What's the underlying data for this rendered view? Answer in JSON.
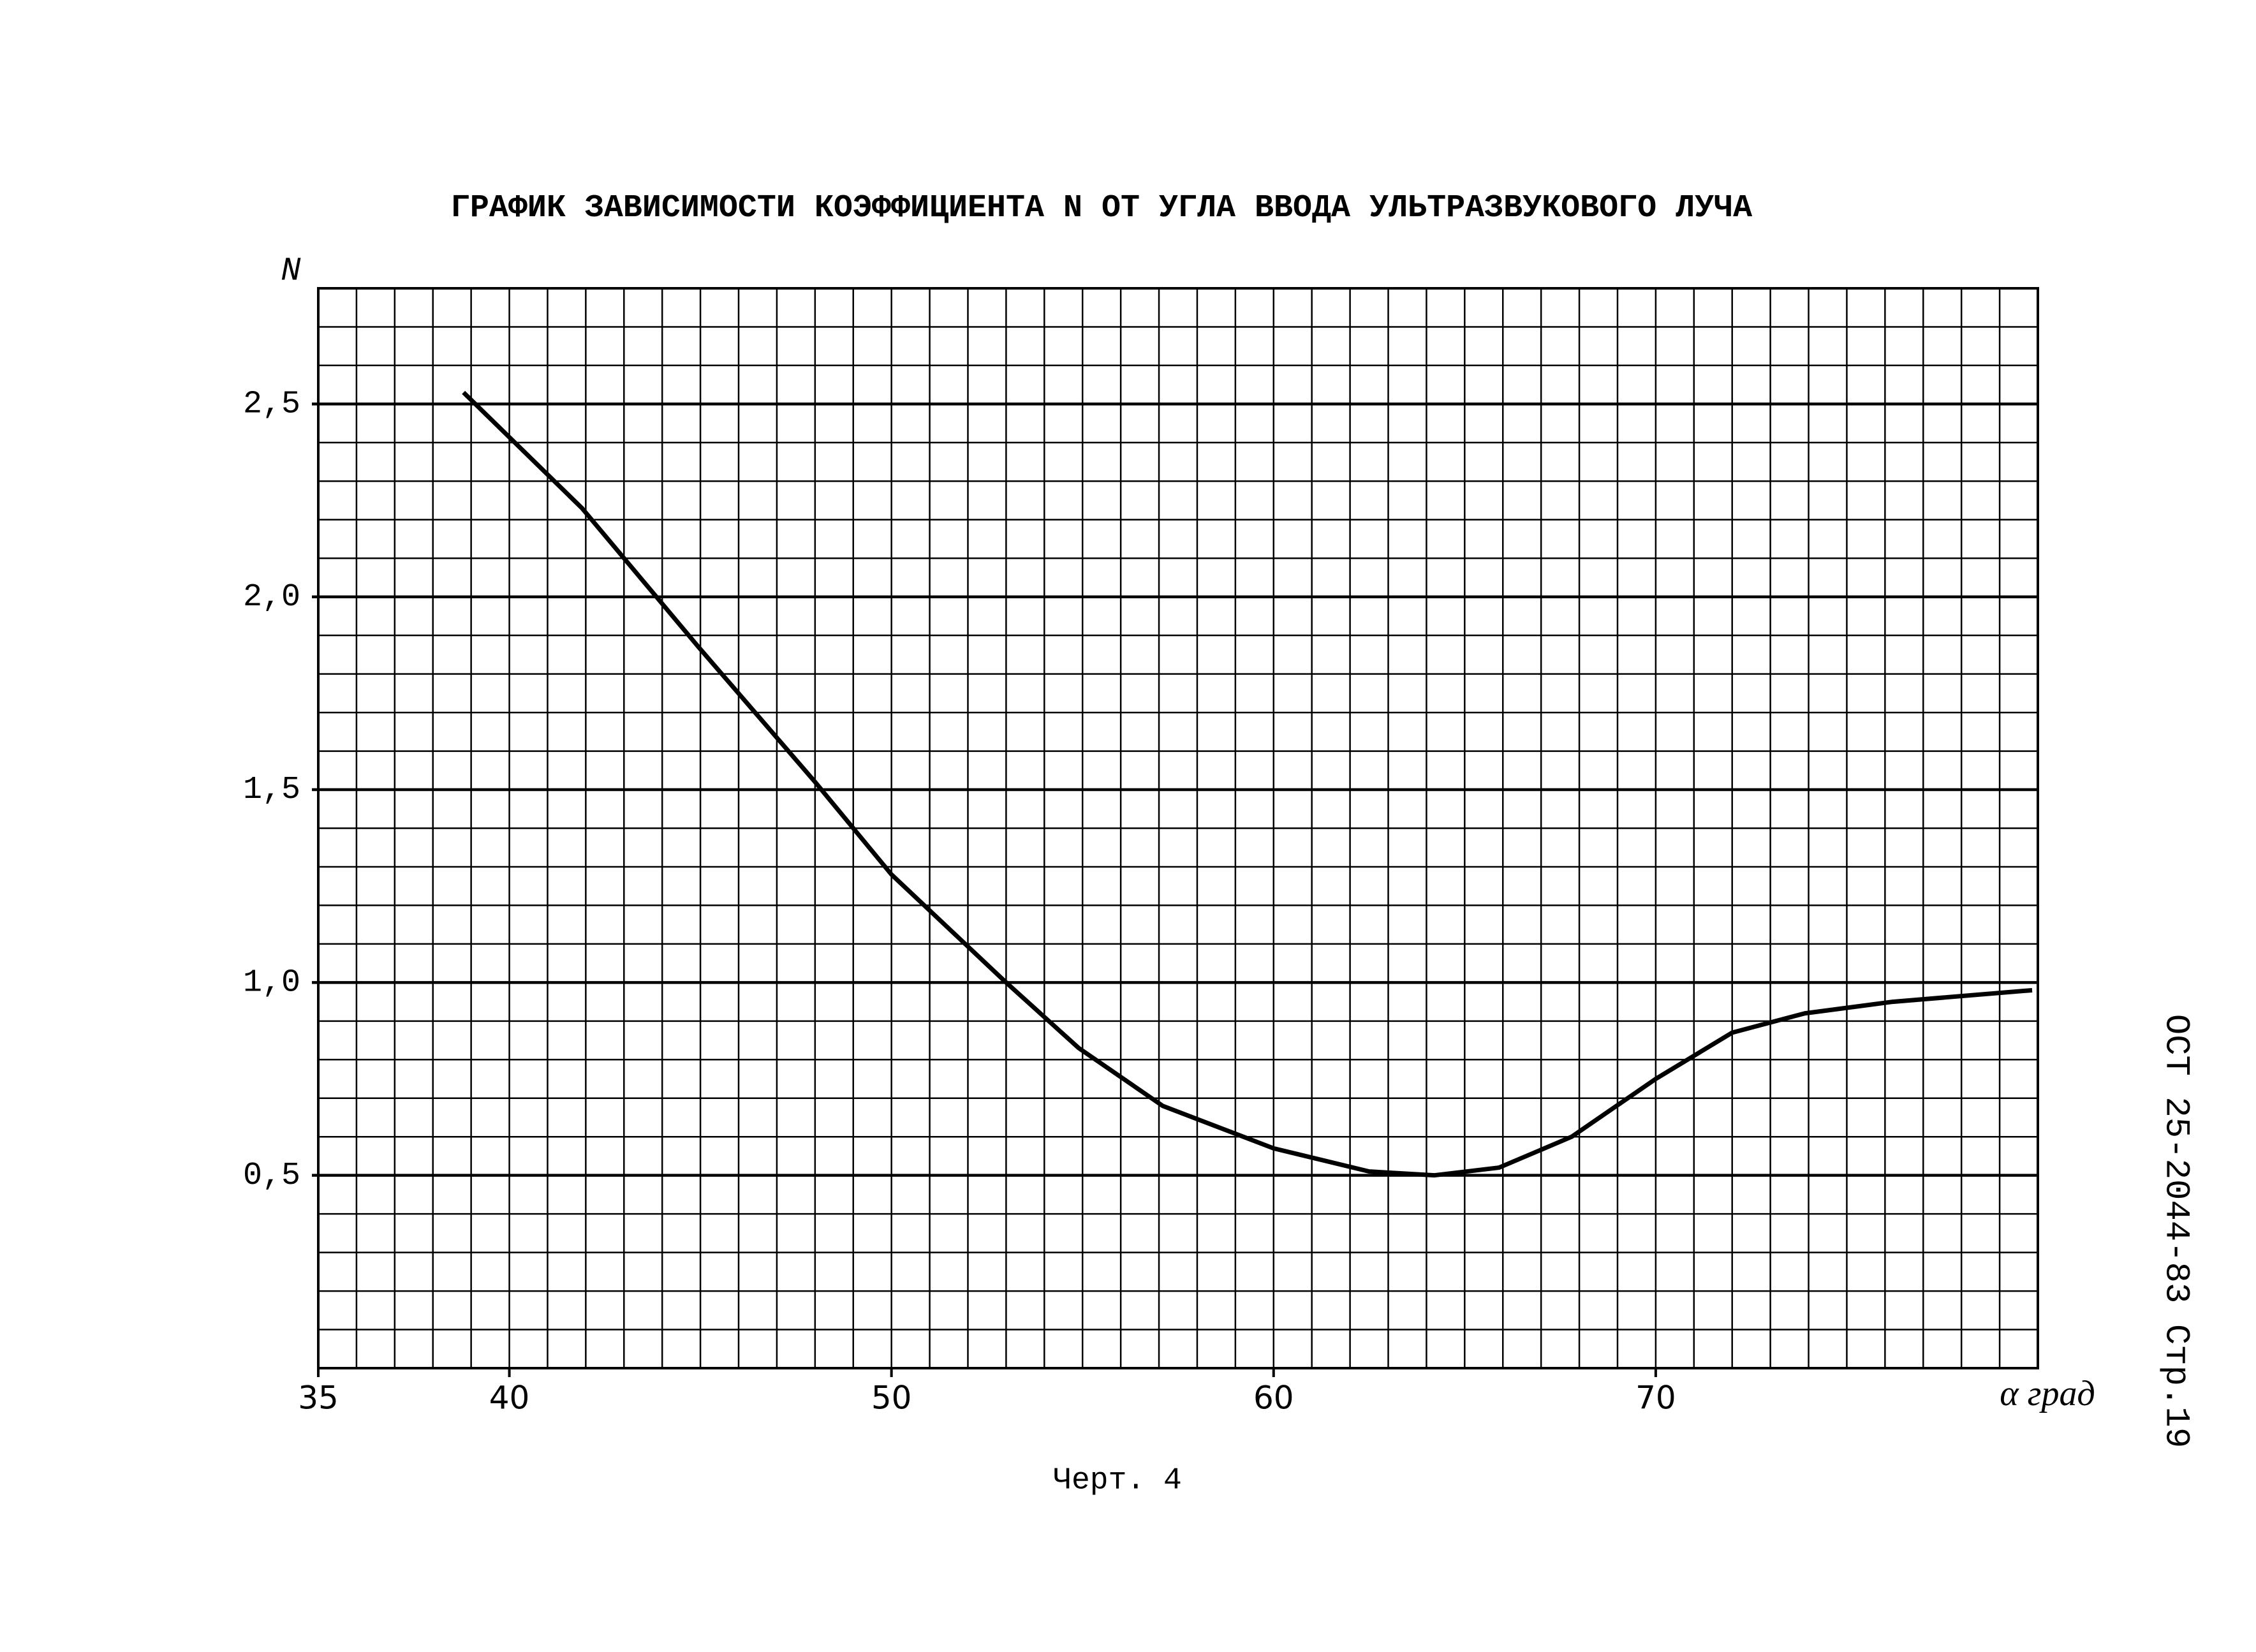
{
  "chart_data": {
    "type": "line",
    "title": "ГРАФИК ЗАВИСИМОСТИ КОЭФФИЦИЕНТА N ОТ УГЛА ВВОДА УЛЬТРАЗВУКОВОГО ЛУЧА",
    "y_label": "N",
    "x_label": "α град",
    "caption": "Черт. 4",
    "side_note": "ОСТ 25-2044-83 Стр.19",
    "x": [
      38.8,
      41.9,
      44.95,
      48.0,
      50.0,
      53.0,
      54.9,
      57.1,
      60.0,
      62.5,
      64.2,
      65.9,
      67.8,
      70.0,
      72.0,
      73.9,
      76.2,
      79.85
    ],
    "series": [
      {
        "color": "#000000",
        "values": [
          2.53,
          2.23,
          1.87,
          1.52,
          1.28,
          1.0,
          0.83,
          0.68,
          0.57,
          0.51,
          0.5,
          0.52,
          0.6,
          0.75,
          0.87,
          0.92,
          0.95,
          0.98
        ]
      }
    ],
    "xlim": [
      35,
      80
    ],
    "ylim": [
      0,
      2.8
    ],
    "xticks": [
      35,
      40,
      50,
      60,
      70
    ],
    "yticks": [
      {
        "value": 0.5,
        "label": "0,5"
      },
      {
        "value": 1.0,
        "label": "1,0"
      },
      {
        "value": 1.5,
        "label": "1,5"
      },
      {
        "value": 2.0,
        "label": "2,0"
      },
      {
        "value": 2.5,
        "label": "2,5"
      }
    ],
    "grid": {
      "x_step": 1,
      "y_step": 0.1
    }
  }
}
